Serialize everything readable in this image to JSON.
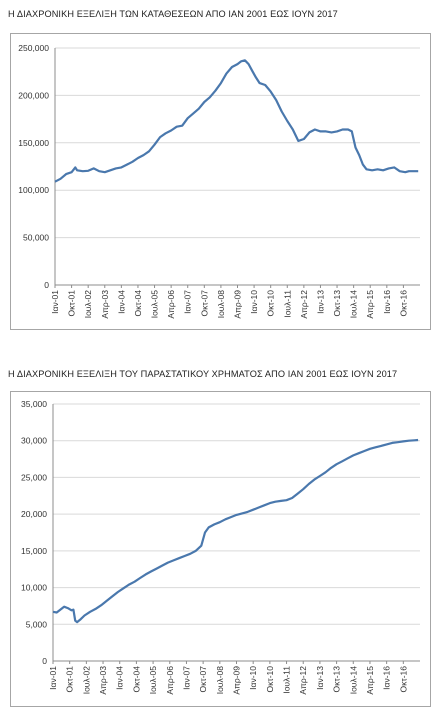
{
  "chart_data": [
    {
      "type": "line",
      "title": "Η ΔΙΑΧΡΟΝΙΚΗ ΕΞΕΛΙΞΗ ΤΩΝ ΚΑΤΑΘΕΣΕΩΝ ΑΠΟ ΙΑΝ 2001 ΕΩΣ ΙΟΥΝ 2017",
      "xlabel": "",
      "ylabel": "",
      "ylim": [
        0,
        250000
      ],
      "yticks": [
        "0",
        "50,000",
        "100,000",
        "150,000",
        "200,000",
        "250,000"
      ],
      "xticks": [
        "Ιαν-01",
        "Οκτ-01",
        "Ιουλ-02",
        "Απρ-03",
        "Ιαν-04",
        "Οκτ-04",
        "Ιουλ-05",
        "Απρ-06",
        "Ιαν-07",
        "Οκτ-07",
        "Ιουλ-08",
        "Απρ-09",
        "Ιαν-10",
        "Οκτ-10",
        "Ιουλ-11",
        "Απρ-12",
        "Ιαν-13",
        "Οκτ-13",
        "Ιουλ-14",
        "Απρ-15",
        "Ιαν-16",
        "Οκτ-16"
      ],
      "grid": true,
      "line_color": "#4a78ad",
      "x_unit": "months since Jan 2001",
      "points": [
        [
          0,
          109000
        ],
        [
          3,
          112000
        ],
        [
          6,
          117000
        ],
        [
          9,
          119000
        ],
        [
          11,
          124000
        ],
        [
          12,
          121000
        ],
        [
          15,
          120000
        ],
        [
          18,
          120500
        ],
        [
          21,
          123000
        ],
        [
          24,
          120000
        ],
        [
          27,
          119000
        ],
        [
          30,
          121000
        ],
        [
          33,
          123000
        ],
        [
          36,
          124000
        ],
        [
          39,
          127000
        ],
        [
          42,
          130000
        ],
        [
          45,
          134000
        ],
        [
          48,
          137000
        ],
        [
          51,
          141000
        ],
        [
          54,
          148000
        ],
        [
          57,
          156000
        ],
        [
          60,
          160000
        ],
        [
          63,
          163000
        ],
        [
          66,
          167000
        ],
        [
          69,
          168000
        ],
        [
          72,
          176000
        ],
        [
          75,
          181000
        ],
        [
          78,
          186000
        ],
        [
          81,
          193000
        ],
        [
          84,
          198000
        ],
        [
          87,
          205000
        ],
        [
          90,
          213000
        ],
        [
          93,
          223000
        ],
        [
          96,
          230000
        ],
        [
          99,
          233000
        ],
        [
          101,
          236000
        ],
        [
          103,
          237000
        ],
        [
          105,
          233000
        ],
        [
          107,
          226000
        ],
        [
          109,
          219000
        ],
        [
          111,
          213000
        ],
        [
          114,
          211000
        ],
        [
          117,
          204000
        ],
        [
          120,
          195000
        ],
        [
          123,
          183000
        ],
        [
          126,
          173000
        ],
        [
          129,
          164000
        ],
        [
          132,
          152000
        ],
        [
          135,
          154000
        ],
        [
          138,
          161000
        ],
        [
          141,
          164000
        ],
        [
          144,
          162000
        ],
        [
          147,
          162000
        ],
        [
          150,
          161000
        ],
        [
          153,
          162000
        ],
        [
          156,
          164000
        ],
        [
          159,
          164000
        ],
        [
          161,
          162000
        ],
        [
          163,
          145000
        ],
        [
          165,
          137000
        ],
        [
          167,
          127000
        ],
        [
          169,
          122000
        ],
        [
          172,
          121000
        ],
        [
          175,
          122000
        ],
        [
          178,
          121000
        ],
        [
          181,
          123000
        ],
        [
          184,
          124000
        ],
        [
          187,
          120000
        ],
        [
          190,
          119000
        ],
        [
          192,
          120000
        ],
        [
          197,
          120000
        ]
      ]
    },
    {
      "type": "line",
      "title": "Η ΔΙΑΧΡΟΝΙΚΗ ΕΞΕΛΙΞΗ ΤΟΥ ΠΑΡΑΣΤΑΤΙΚΟΥ ΧΡΗΜΑΤΟΣ ΑΠΟ ΙΑΝ 2001 ΕΩΣ ΙΟΥΝ 2017",
      "xlabel": "",
      "ylabel": "",
      "ylim": [
        0,
        35000
      ],
      "yticks": [
        "0",
        "5,000",
        "10,000",
        "15,000",
        "20,000",
        "25,000",
        "30,000",
        "35,000"
      ],
      "xticks": [
        "Ιαν-01",
        "Οκτ-01",
        "Ιουλ-02",
        "Απρ-03",
        "Ιαν-04",
        "Οκτ-04",
        "Ιουλ-05",
        "Απρ-06",
        "Ιαν-07",
        "Οκτ-07",
        "Ιουλ-08",
        "Απρ-09",
        "Ιαν-10",
        "Οκτ-10",
        "Ιουλ-11",
        "Απρ-12",
        "Ιαν-13",
        "Οκτ-13",
        "Ιουλ-14",
        "Απρ-15",
        "Ιαν-16",
        "Οκτ-16"
      ],
      "grid": true,
      "line_color": "#4a78ad",
      "x_unit": "months since Jan 2001",
      "points": [
        [
          0,
          6700
        ],
        [
          2,
          6600
        ],
        [
          4,
          7000
        ],
        [
          6,
          7400
        ],
        [
          8,
          7200
        ],
        [
          10,
          6900
        ],
        [
          11,
          7000
        ],
        [
          12,
          5500
        ],
        [
          13,
          5300
        ],
        [
          15,
          5700
        ],
        [
          17,
          6200
        ],
        [
          20,
          6700
        ],
        [
          23,
          7100
        ],
        [
          26,
          7600
        ],
        [
          29,
          8200
        ],
        [
          32,
          8800
        ],
        [
          35,
          9400
        ],
        [
          38,
          9900
        ],
        [
          41,
          10400
        ],
        [
          44,
          10800
        ],
        [
          47,
          11300
        ],
        [
          50,
          11800
        ],
        [
          53,
          12200
        ],
        [
          56,
          12600
        ],
        [
          59,
          13000
        ],
        [
          62,
          13400
        ],
        [
          65,
          13700
        ],
        [
          68,
          14000
        ],
        [
          71,
          14300
        ],
        [
          74,
          14600
        ],
        [
          77,
          15000
        ],
        [
          80,
          15700
        ],
        [
          82,
          17500
        ],
        [
          84,
          18200
        ],
        [
          87,
          18600
        ],
        [
          90,
          18900
        ],
        [
          93,
          19300
        ],
        [
          96,
          19600
        ],
        [
          99,
          19900
        ],
        [
          102,
          20100
        ],
        [
          105,
          20300
        ],
        [
          108,
          20600
        ],
        [
          111,
          20900
        ],
        [
          114,
          21200
        ],
        [
          117,
          21500
        ],
        [
          120,
          21700
        ],
        [
          123,
          21800
        ],
        [
          126,
          21900
        ],
        [
          129,
          22200
        ],
        [
          132,
          22800
        ],
        [
          135,
          23400
        ],
        [
          138,
          24100
        ],
        [
          141,
          24700
        ],
        [
          144,
          25200
        ],
        [
          147,
          25700
        ],
        [
          150,
          26300
        ],
        [
          153,
          26800
        ],
        [
          156,
          27200
        ],
        [
          159,
          27600
        ],
        [
          162,
          28000
        ],
        [
          165,
          28300
        ],
        [
          168,
          28600
        ],
        [
          171,
          28900
        ],
        [
          174,
          29100
        ],
        [
          177,
          29300
        ],
        [
          180,
          29500
        ],
        [
          183,
          29700
        ],
        [
          186,
          29800
        ],
        [
          189,
          29900
        ],
        [
          192,
          30000
        ],
        [
          195,
          30050
        ],
        [
          197,
          30100
        ]
      ]
    }
  ]
}
